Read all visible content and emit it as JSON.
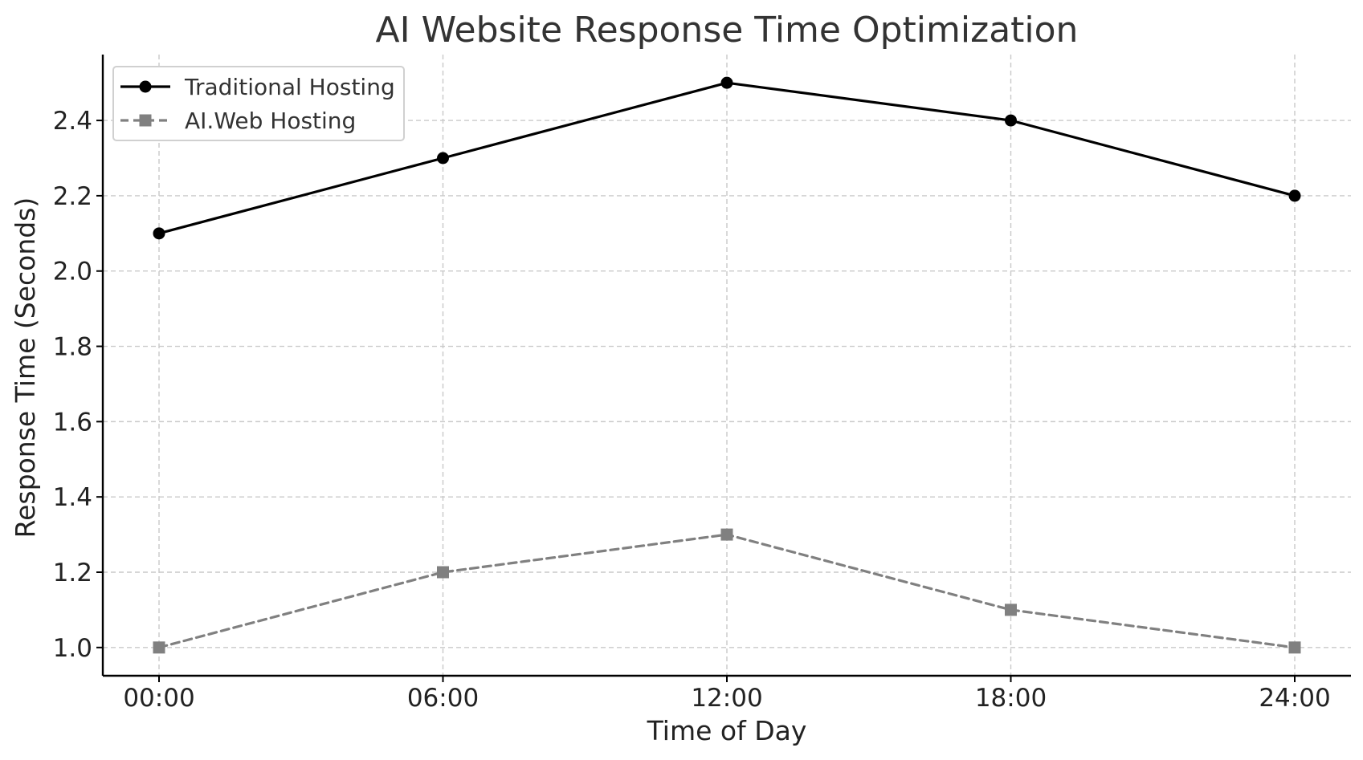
{
  "chart_data": {
    "type": "line",
    "title": "AI Website Response Time Optimization",
    "xlabel": "Time of Day",
    "ylabel": "Response Time (Seconds)",
    "categories": [
      "00:00",
      "06:00",
      "12:00",
      "18:00",
      "24:00"
    ],
    "yticks": [
      "1.0",
      "1.2",
      "1.4",
      "1.6",
      "1.8",
      "2.0",
      "2.2",
      "2.4"
    ],
    "ylim": [
      0.925,
      2.575
    ],
    "grid": true,
    "legend_position": "top-left",
    "series": [
      {
        "name": "Traditional Hosting",
        "values": [
          2.1,
          2.3,
          2.5,
          2.4,
          2.2
        ],
        "color": "#000000",
        "line_style": "solid",
        "marker": "circle"
      },
      {
        "name": "AI.Web Hosting",
        "values": [
          1.0,
          1.2,
          1.3,
          1.1,
          1.0
        ],
        "color": "#808080",
        "line_style": "dashed",
        "marker": "square"
      }
    ]
  }
}
